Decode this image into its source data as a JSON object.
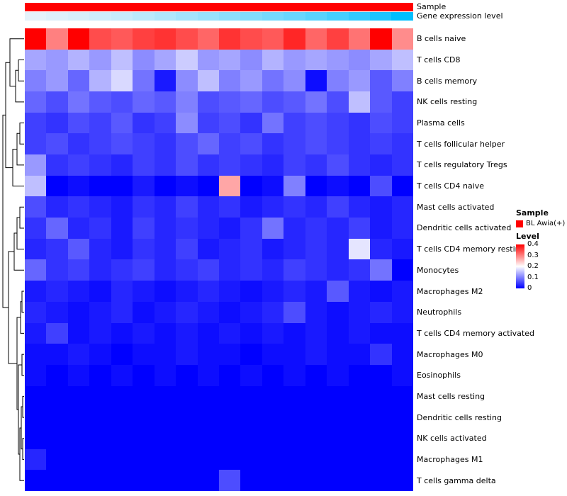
{
  "annotation_bars": {
    "sample": {
      "label": "Sample",
      "color": "#FF0000"
    },
    "expression": {
      "label": "Gene expression level",
      "low_color": "#EAF3FA",
      "high_color": "#00BFFF",
      "values": [
        0.02,
        0.05,
        0.08,
        0.12,
        0.15,
        0.2,
        0.25,
        0.3,
        0.35,
        0.4,
        0.45,
        0.5,
        0.55,
        0.62,
        0.7,
        0.78,
        0.88,
        1.0
      ]
    }
  },
  "legend": {
    "sample_title": "Sample",
    "sample_items": [
      {
        "label": "BL Awia(+)",
        "color": "#FF0000"
      }
    ],
    "level_title": "Level",
    "level_ticks": [
      "0.4",
      "0.3",
      "0.2",
      "0.1",
      "0"
    ]
  },
  "chart_data": {
    "type": "heatmap",
    "title": "",
    "n_columns": 18,
    "rows": [
      "B cells naive",
      "T cells CD8",
      "B cells memory",
      "NK cells resting",
      "Plasma cells",
      "T cells follicular helper",
      "T cells regulatory  Tregs",
      "T cells CD4 naive",
      "Mast cells activated",
      "Dendritic cells activated",
      "T cells CD4 memory resting",
      "Monocytes",
      "Macrophages M2",
      "Neutrophils",
      "T cells CD4 memory activated",
      "Macrophages M0",
      "Eosinophils",
      "Mast cells resting",
      "Dendritic cells resting",
      "NK cells activated",
      "Macrophages M1",
      "T cells gamma delta"
    ],
    "color_scale": {
      "min": 0,
      "mid": 0.2,
      "max": 0.4,
      "min_color": "#0000FF",
      "mid_color": "#FFFFFF",
      "max_color": "#FF0000"
    },
    "values": [
      [
        0.45,
        0.3,
        0.45,
        0.34,
        0.33,
        0.35,
        0.36,
        0.34,
        0.32,
        0.36,
        0.34,
        0.33,
        0.37,
        0.32,
        0.35,
        0.31,
        0.43,
        0.29
      ],
      [
        0.13,
        0.12,
        0.14,
        0.12,
        0.15,
        0.11,
        0.13,
        0.16,
        0.12,
        0.13,
        0.11,
        0.14,
        0.12,
        0.13,
        0.12,
        0.11,
        0.13,
        0.15
      ],
      [
        0.1,
        0.12,
        0.08,
        0.14,
        0.17,
        0.09,
        0.02,
        0.11,
        0.15,
        0.1,
        0.12,
        0.09,
        0.11,
        0.01,
        0.1,
        0.12,
        0.07,
        0.1
      ],
      [
        0.08,
        0.06,
        0.09,
        0.07,
        0.06,
        0.08,
        0.07,
        0.1,
        0.06,
        0.07,
        0.08,
        0.06,
        0.07,
        0.09,
        0.06,
        0.15,
        0.07,
        0.05
      ],
      [
        0.05,
        0.04,
        0.06,
        0.05,
        0.07,
        0.04,
        0.05,
        0.11,
        0.05,
        0.06,
        0.04,
        0.09,
        0.05,
        0.06,
        0.05,
        0.04,
        0.06,
        0.05
      ],
      [
        0.05,
        0.06,
        0.04,
        0.05,
        0.06,
        0.05,
        0.04,
        0.06,
        0.08,
        0.05,
        0.06,
        0.04,
        0.05,
        0.06,
        0.05,
        0.04,
        0.05,
        0.04
      ],
      [
        0.12,
        0.04,
        0.05,
        0.04,
        0.03,
        0.05,
        0.04,
        0.06,
        0.04,
        0.05,
        0.04,
        0.03,
        0.05,
        0.04,
        0.06,
        0.04,
        0.03,
        0.04
      ],
      [
        0.15,
        0.0,
        0.01,
        0.0,
        0.0,
        0.02,
        0.0,
        0.01,
        0.0,
        0.27,
        0.0,
        0.01,
        0.1,
        0.0,
        0.01,
        0.0,
        0.06,
        0.0
      ],
      [
        0.06,
        0.03,
        0.04,
        0.03,
        0.02,
        0.04,
        0.03,
        0.05,
        0.03,
        0.04,
        0.02,
        0.03,
        0.04,
        0.03,
        0.05,
        0.03,
        0.02,
        0.03
      ],
      [
        0.04,
        0.08,
        0.03,
        0.04,
        0.02,
        0.05,
        0.03,
        0.04,
        0.03,
        0.02,
        0.04,
        0.09,
        0.03,
        0.04,
        0.03,
        0.05,
        0.02,
        0.03
      ],
      [
        0.03,
        0.04,
        0.07,
        0.03,
        0.02,
        0.04,
        0.03,
        0.05,
        0.02,
        0.03,
        0.04,
        0.02,
        0.03,
        0.04,
        0.03,
        0.18,
        0.03,
        0.02
      ],
      [
        0.08,
        0.04,
        0.05,
        0.03,
        0.04,
        0.05,
        0.03,
        0.04,
        0.05,
        0.03,
        0.04,
        0.03,
        0.05,
        0.04,
        0.03,
        0.04,
        0.09,
        0.0
      ],
      [
        0.02,
        0.03,
        0.02,
        0.01,
        0.03,
        0.02,
        0.01,
        0.02,
        0.03,
        0.02,
        0.01,
        0.02,
        0.03,
        0.02,
        0.07,
        0.02,
        0.01,
        0.02
      ],
      [
        0.03,
        0.02,
        0.01,
        0.02,
        0.03,
        0.01,
        0.02,
        0.03,
        0.02,
        0.01,
        0.02,
        0.03,
        0.06,
        0.02,
        0.01,
        0.02,
        0.03,
        0.02
      ],
      [
        0.02,
        0.05,
        0.01,
        0.02,
        0.01,
        0.02,
        0.01,
        0.02,
        0.01,
        0.02,
        0.01,
        0.02,
        0.01,
        0.02,
        0.01,
        0.02,
        0.01,
        0.01
      ],
      [
        0.01,
        0.01,
        0.02,
        0.01,
        0.0,
        0.01,
        0.01,
        0.02,
        0.01,
        0.01,
        0.0,
        0.01,
        0.01,
        0.02,
        0.01,
        0.01,
        0.04,
        0.01
      ],
      [
        0.01,
        0.0,
        0.01,
        0.0,
        0.01,
        0.0,
        0.01,
        0.0,
        0.01,
        0.0,
        0.01,
        0.0,
        0.01,
        0.0,
        0.01,
        0.0,
        0.0,
        0.01
      ],
      [
        0.0,
        0.0,
        0.0,
        0.0,
        0.0,
        0.0,
        0.0,
        0.0,
        0.0,
        0.0,
        0.0,
        0.0,
        0.0,
        0.0,
        0.0,
        0.0,
        0.0,
        0.0
      ],
      [
        0.0,
        0.0,
        0.0,
        0.0,
        0.0,
        0.0,
        0.0,
        0.0,
        0.0,
        0.0,
        0.0,
        0.0,
        0.0,
        0.0,
        0.0,
        0.0,
        0.0,
        0.0
      ],
      [
        0.0,
        0.0,
        0.0,
        0.0,
        0.0,
        0.0,
        0.0,
        0.0,
        0.0,
        0.0,
        0.0,
        0.0,
        0.0,
        0.0,
        0.0,
        0.0,
        0.0,
        0.0
      ],
      [
        0.03,
        0.0,
        0.0,
        0.0,
        0.0,
        0.0,
        0.0,
        0.0,
        0.0,
        0.0,
        0.0,
        0.0,
        0.0,
        0.0,
        0.0,
        0.0,
        0.0,
        0.0
      ],
      [
        0.0,
        0.0,
        0.0,
        0.0,
        0.0,
        0.0,
        0.0,
        0.0,
        0.0,
        0.06,
        0.0,
        0.0,
        0.0,
        0.0,
        0.0,
        0.0,
        0.0,
        0.0
      ]
    ]
  }
}
